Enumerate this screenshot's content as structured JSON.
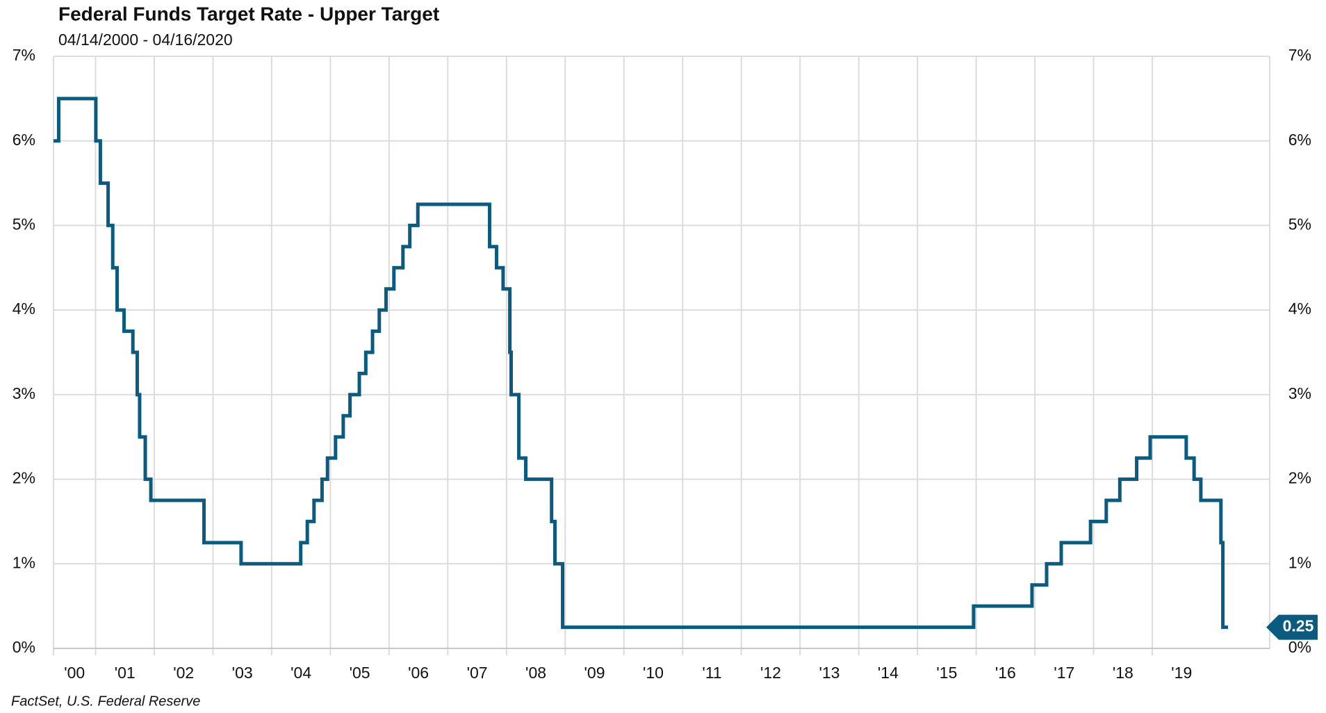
{
  "chart_data": {
    "type": "line",
    "title": "Federal Funds Target Rate - Upper Target",
    "subtitle": "04/14/2000 - 04/16/2020",
    "source": "FactSet, U.S. Federal Reserve",
    "step": "post",
    "last_value_label": true,
    "grid": true,
    "x": [
      2000.284,
      2000.372,
      2001.005,
      2001.082,
      2001.214,
      2001.293,
      2001.367,
      2001.485,
      2001.636,
      2001.71,
      2001.751,
      2001.847,
      2001.942,
      2002.847,
      2003.479,
      2004.495,
      2004.607,
      2004.721,
      2004.858,
      2004.951,
      2005.088,
      2005.219,
      2005.334,
      2005.493,
      2005.603,
      2005.718,
      2005.833,
      2005.948,
      2006.082,
      2006.236,
      2006.353,
      2006.49,
      2007.712,
      2007.83,
      2007.942,
      2008.057,
      2008.079,
      2008.21,
      2008.328,
      2008.768,
      2008.825,
      2008.956,
      2015.956,
      2016.951,
      2017.2,
      2017.449,
      2017.948,
      2018.216,
      2018.447,
      2018.734,
      2018.964,
      2019.578,
      2019.712,
      2019.827,
      2020.169,
      2020.202,
      2020.29
    ],
    "series": [
      {
        "name": "Upper Target",
        "color": "#0b5a80",
        "values": [
          6.0,
          6.5,
          6.0,
          5.5,
          5.0,
          4.5,
          4.0,
          3.75,
          3.5,
          3.0,
          2.5,
          2.0,
          1.75,
          1.25,
          1.0,
          1.25,
          1.5,
          1.75,
          2.0,
          2.25,
          2.5,
          2.75,
          3.0,
          3.25,
          3.5,
          3.75,
          4.0,
          4.25,
          4.5,
          4.75,
          5.0,
          5.25,
          4.75,
          4.5,
          4.25,
          3.5,
          3.0,
          2.25,
          2.0,
          1.5,
          1.0,
          0.25,
          0.5,
          0.75,
          1.0,
          1.25,
          1.5,
          1.75,
          2.0,
          2.25,
          2.5,
          2.25,
          2.0,
          1.75,
          1.25,
          0.25,
          0.25
        ]
      }
    ],
    "xlim": [
      2000.284,
      2021
    ],
    "xticks": [
      {
        "value": 2000,
        "label": "'00"
      },
      {
        "value": 2001,
        "label": "'01"
      },
      {
        "value": 2002,
        "label": "'02"
      },
      {
        "value": 2003,
        "label": "'03"
      },
      {
        "value": 2004,
        "label": "'04"
      },
      {
        "value": 2005,
        "label": "'05"
      },
      {
        "value": 2006,
        "label": "'06"
      },
      {
        "value": 2007,
        "label": "'07"
      },
      {
        "value": 2008,
        "label": "'08"
      },
      {
        "value": 2009,
        "label": "'09"
      },
      {
        "value": 2010,
        "label": "'10"
      },
      {
        "value": 2011,
        "label": "'11"
      },
      {
        "value": 2012,
        "label": "'12"
      },
      {
        "value": 2013,
        "label": "'13"
      },
      {
        "value": 2014,
        "label": "'14"
      },
      {
        "value": 2015,
        "label": "'15"
      },
      {
        "value": 2016,
        "label": "'16"
      },
      {
        "value": 2017,
        "label": "'17"
      },
      {
        "value": 2018,
        "label": "'18"
      },
      {
        "value": 2019,
        "label": "'19"
      }
    ],
    "ylim": [
      0,
      7
    ],
    "yticks": [
      {
        "value": 0,
        "label": "0%"
      },
      {
        "value": 1,
        "label": "1%"
      },
      {
        "value": 2,
        "label": "2%"
      },
      {
        "value": 3,
        "label": "3%"
      },
      {
        "value": 4,
        "label": "4%"
      },
      {
        "value": 5,
        "label": "5%"
      },
      {
        "value": 6,
        "label": "6%"
      },
      {
        "value": 7,
        "label": "7%"
      }
    ],
    "y2lim": [
      0,
      7
    ],
    "y2ticks": [
      {
        "value": 0,
        "label": "0%"
      },
      {
        "value": 1,
        "label": "1%"
      },
      {
        "value": 2,
        "label": "2%"
      },
      {
        "value": 3,
        "label": "3%"
      },
      {
        "value": 4,
        "label": "4%"
      },
      {
        "value": 5,
        "label": "5%"
      },
      {
        "value": 6,
        "label": "6%"
      },
      {
        "value": 7,
        "label": "7%"
      }
    ]
  }
}
